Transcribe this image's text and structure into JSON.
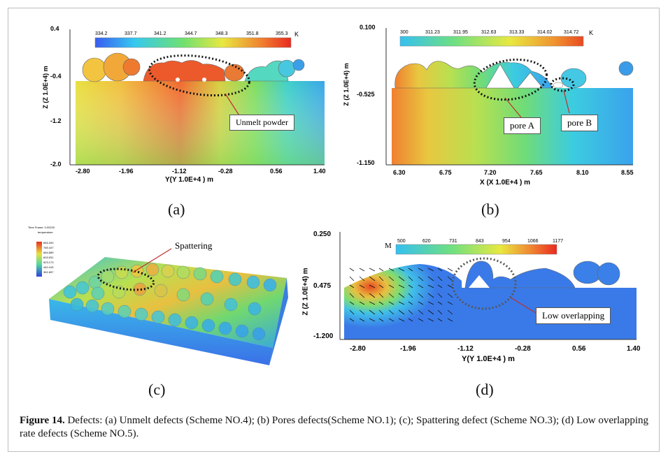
{
  "panels": {
    "a": {
      "label": "(a)",
      "y_axis_title": "Z (Z 1.0E+4)  m",
      "x_axis_title": "Y(Y 1.0E+4 )  m",
      "y_ticks": [
        "0.4",
        "-0.4",
        "-1.2",
        "-2.0"
      ],
      "x_ticks": [
        "-2.80",
        "-1.96",
        "-1.12",
        "-0.28",
        "0.56",
        "1.40"
      ],
      "colorbar_values": [
        "334.2",
        "337.7",
        "341.2",
        "344.7",
        "348.3",
        "351.8",
        "355.3"
      ],
      "colorbar_unit": "K",
      "annotation": "Unmelt powder"
    },
    "b": {
      "label": "(b)",
      "y_axis_title": "Z (Z 1.0E+4)  m",
      "x_axis_title": "X (X 1.0E+4 )  m",
      "y_ticks": [
        "0.100",
        "-0.525",
        "-1.150"
      ],
      "x_ticks": [
        "6.30",
        "6.75",
        "7.20",
        "7.65",
        "8.10",
        "8.55"
      ],
      "colorbar_values": [
        "300",
        "311.23",
        "311.95",
        "312.63",
        "313.33",
        "314.02",
        "314.72"
      ],
      "colorbar_unit": "K",
      "annotation_a": "pore A",
      "annotation_b": "pore B"
    },
    "c": {
      "label": "(c)",
      "legend_title_1": "Time Frame:  0.00220",
      "legend_title_2": "temperature",
      "legend_values": [
        "846.200",
        "765.447",
        "684.689",
        "603.931",
        "523.173",
        "442.415",
        "361.657"
      ],
      "annotation": "Spattering"
    },
    "d": {
      "label": "(d)",
      "y_axis_title": "Z (Z 1.0E+4)  m",
      "x_axis_title": "Y(Y 1.0E+4 )  m",
      "y_ticks": [
        "0.250",
        "0.475",
        "-1.200"
      ],
      "x_ticks": [
        "-2.80",
        "-1.96",
        "-1.12",
        "-0.28",
        "0.56",
        "1.40"
      ],
      "colorbar_letter": "M",
      "colorbar_values": [
        "500",
        "620",
        "731",
        "843",
        "954",
        "1066",
        "1177"
      ],
      "annotation": "Low overlapping"
    }
  },
  "caption": {
    "figure_label": "Figure 14.",
    "text": " Defects: (a) Unmelt defects (Scheme NO.4); (b) Pores defects(Scheme NO.1); (c); Spattering defect (Scheme NO.3); (d) Low overlapping rate defects (Scheme NO.5)."
  }
}
